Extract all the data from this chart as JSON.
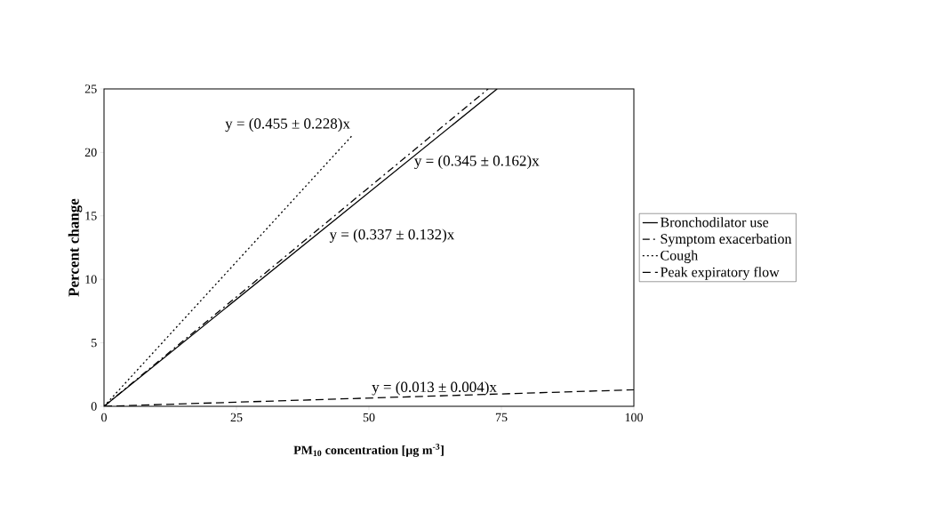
{
  "chart_data": {
    "type": "line",
    "xlabel": "**PM$_{10}$ concentration [µg m$^{-3}$]**",
    "ylabel": "Percent change",
    "xlim": [
      0,
      100
    ],
    "ylim": [
      0,
      25
    ],
    "xticks": [
      0,
      25,
      50,
      75,
      100
    ],
    "yticks": [
      0,
      5,
      10,
      15,
      20,
      25
    ],
    "grid": false,
    "legend": "right",
    "series": [
      {
        "name": "Bronchodilator use",
        "color": "#000000",
        "line_style": "solid",
        "x": [
          0,
          74.2
        ],
        "values": [
          0,
          25
        ]
      },
      {
        "name": "Symptom exacerbation",
        "color": "#000000",
        "line_style": "dashdot",
        "x": [
          0,
          72.5
        ],
        "values": [
          0,
          25
        ]
      },
      {
        "name": "Cough",
        "color": "#000000",
        "line_style": "dotted",
        "x": [
          0,
          47
        ],
        "values": [
          0,
          21.4
        ]
      },
      {
        "name": "Peak expiratory flow",
        "color": "#000000",
        "line_style": "dashed",
        "x": [
          0,
          100
        ],
        "values": [
          0,
          1.3
        ]
      }
    ],
    "annotations": [
      {
        "text": "y = (0.455 ± 0.228)x",
        "x": 47,
        "y": 21.4
      },
      {
        "text": "y = (0.345 ± 0.162)x",
        "x": 58,
        "y": 20
      },
      {
        "text": "y = (0.337 ± 0.132)x",
        "x": 42,
        "y": 14.2
      },
      {
        "text": "y = (0.013 ± 0.004)x",
        "x": 50,
        "y": 0.65
      }
    ]
  }
}
